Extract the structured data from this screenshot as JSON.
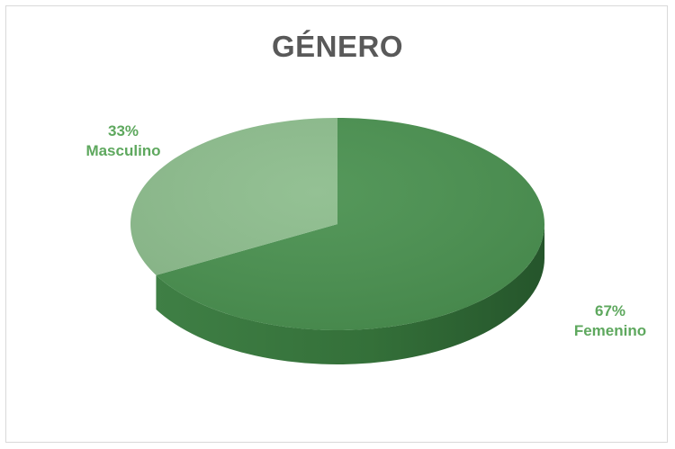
{
  "chart_data": {
    "type": "pie",
    "title": "GÉNERO",
    "slices": [
      {
        "name": "Femenino",
        "value": 67,
        "percent_label": "67%",
        "color": "#4a9150"
      },
      {
        "name": "Masculino",
        "value": 33,
        "percent_label": "33%",
        "color": "#8dbd8d"
      }
    ],
    "label_color": "#5ea85e",
    "style": "3d-pie",
    "legend": "none"
  }
}
